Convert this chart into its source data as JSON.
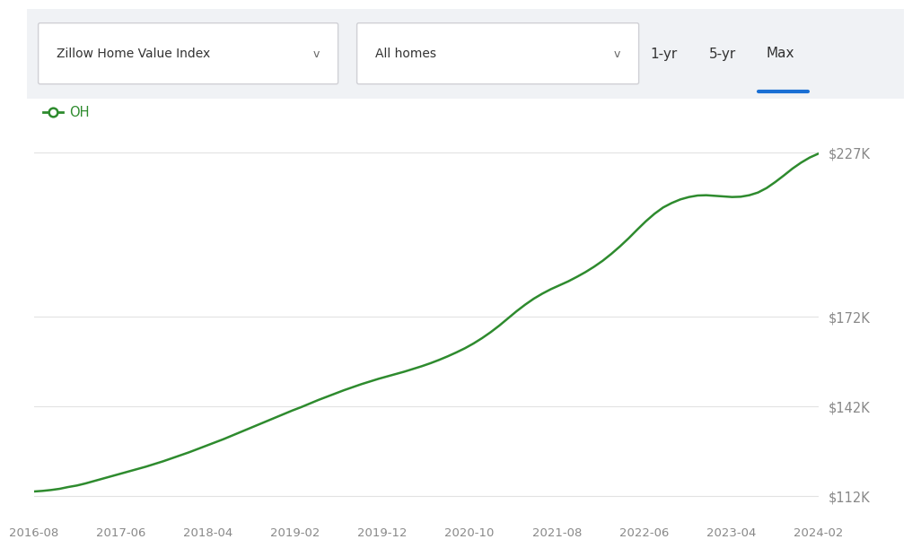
{
  "x_labels": [
    "2016-08",
    "2017-06",
    "2018-04",
    "2019-02",
    "2019-12",
    "2020-10",
    "2021-08",
    "2022-06",
    "2023-04",
    "2024-02"
  ],
  "y_ticks": [
    112000,
    142000,
    172000,
    227000
  ],
  "y_tick_labels": [
    "$112K",
    "$142K",
    "$172K",
    "$227K"
  ],
  "y_min": 104000,
  "y_max": 236000,
  "line_color": "#2e8b2e",
  "background_color": "#ffffff",
  "legend_label": "OH",
  "legend_marker_color": "#2e8b2e",
  "header_bg": "#f0f2f5",
  "dropdown1_text": "Zillow Home Value Index",
  "dropdown2_text": "All homes",
  "btn_1yr": "1-yr",
  "btn_5yr": "5-yr",
  "btn_max": "Max",
  "active_btn_underline": "#1a6fd4",
  "data_x": [
    0,
    1,
    2,
    3,
    4,
    5,
    6,
    7,
    8,
    9,
    10,
    11,
    12,
    13,
    14,
    15,
    16,
    17,
    18,
    19,
    20,
    21,
    22,
    23,
    24,
    25,
    26,
    27,
    28,
    29,
    30,
    31,
    32,
    33,
    34,
    35,
    36,
    37,
    38,
    39,
    40,
    41,
    42,
    43,
    44,
    45,
    46,
    47,
    48,
    49,
    50,
    51,
    52,
    53,
    54,
    55,
    56,
    57,
    58,
    59,
    60,
    61,
    62,
    63,
    64,
    65,
    66,
    67,
    68,
    69,
    70,
    71,
    72,
    73,
    74,
    75,
    76,
    77,
    78,
    79,
    80,
    81,
    82,
    83,
    84,
    85,
    86,
    87,
    88,
    89,
    90,
    91
  ],
  "data_y": [
    113500,
    113700,
    114000,
    114400,
    115000,
    115500,
    116200,
    117000,
    117800,
    118600,
    119400,
    120200,
    121000,
    121800,
    122700,
    123600,
    124600,
    125600,
    126600,
    127700,
    128800,
    129900,
    131000,
    132200,
    133400,
    134600,
    135800,
    137000,
    138200,
    139400,
    140600,
    141700,
    142900,
    144100,
    145200,
    146300,
    147400,
    148400,
    149400,
    150300,
    151200,
    152000,
    152800,
    153600,
    154500,
    155400,
    156400,
    157500,
    158700,
    160000,
    161400,
    163000,
    164800,
    166800,
    169000,
    171400,
    173800,
    176000,
    178000,
    179700,
    181200,
    182500,
    183800,
    185300,
    186900,
    188700,
    190700,
    193000,
    195500,
    198200,
    201100,
    203900,
    206400,
    208500,
    210000,
    211200,
    212000,
    212500,
    212600,
    212400,
    212200,
    212000,
    212100,
    212600,
    213500,
    215000,
    217000,
    219200,
    221500,
    223500,
    225200,
    226500
  ]
}
